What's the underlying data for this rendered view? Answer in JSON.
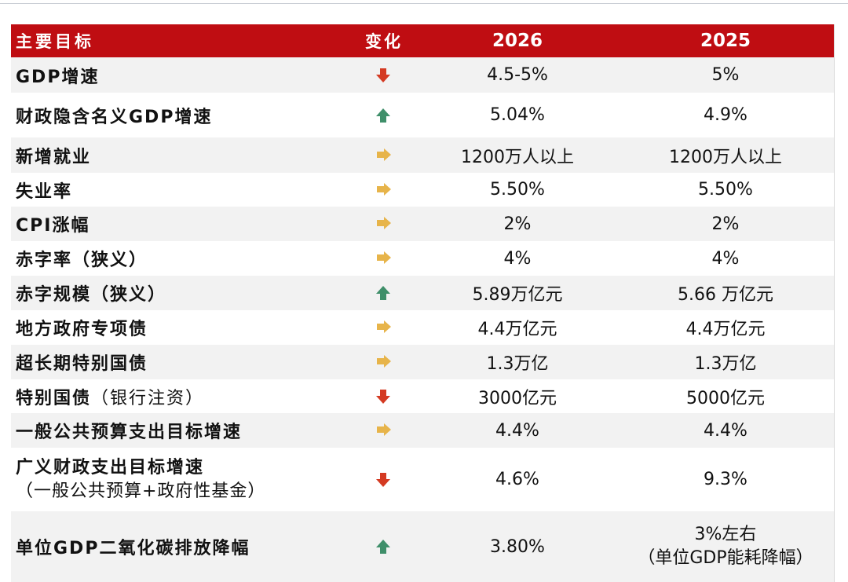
{
  "table": {
    "header": {
      "label": "主要目标",
      "change": "变化",
      "y2026": "2026",
      "y2025": "2025"
    },
    "colors": {
      "header_bg": "#bf0d12",
      "up": "#3f8f6a",
      "down": "#d43a22",
      "flat": "#e7b44a"
    },
    "rows": [
      {
        "label": "GDP增速",
        "change": "down",
        "y2026": "4.5-5%",
        "y2025": "5%"
      },
      {
        "label": "财政隐含名义GDP增速",
        "change": "up",
        "y2026": "5.04%",
        "y2025": "4.9%"
      },
      {
        "label": "新增就业",
        "change": "flat",
        "y2026": "1200万人以上",
        "y2025": "1200万人以上"
      },
      {
        "label": "失业率",
        "change": "flat",
        "y2026": "5.50%",
        "y2025": "5.50%"
      },
      {
        "label": "CPI涨幅",
        "change": "flat",
        "y2026": "2%",
        "y2025": "2%"
      },
      {
        "label": "赤字率（狭义）",
        "change": "flat",
        "y2026": "4%",
        "y2025": "4%"
      },
      {
        "label": "赤字规模（狭义）",
        "change": "up",
        "y2026": "5.89万亿元",
        "y2025": "5.66 万亿元"
      },
      {
        "label": "地方政府专项债",
        "change": "flat",
        "y2026": "4.4万亿元",
        "y2025": "4.4万亿元"
      },
      {
        "label": "超长期特别国债",
        "change": "flat",
        "y2026": "1.3万亿",
        "y2025": "1.3万亿"
      },
      {
        "label": "特别国债",
        "label_sub": "（银行注资）",
        "change": "down",
        "y2026": "3000亿元",
        "y2025": "5000亿元"
      },
      {
        "label": "一般公共预算支出目标增速",
        "change": "flat",
        "y2026": "4.4%",
        "y2025": "4.4%"
      },
      {
        "label": "广义财政支出目标增速",
        "label_line2": "（一般公共预算+政府性基金）",
        "change": "down",
        "y2026": "4.6%",
        "y2025": "9.3%"
      },
      {
        "label": "单位GDP二氧化碳排放降幅",
        "change": "up",
        "y2026": "3.80%",
        "y2025": "3%左右",
        "y2025_line2": "（单位GDP能耗降幅）"
      }
    ]
  }
}
